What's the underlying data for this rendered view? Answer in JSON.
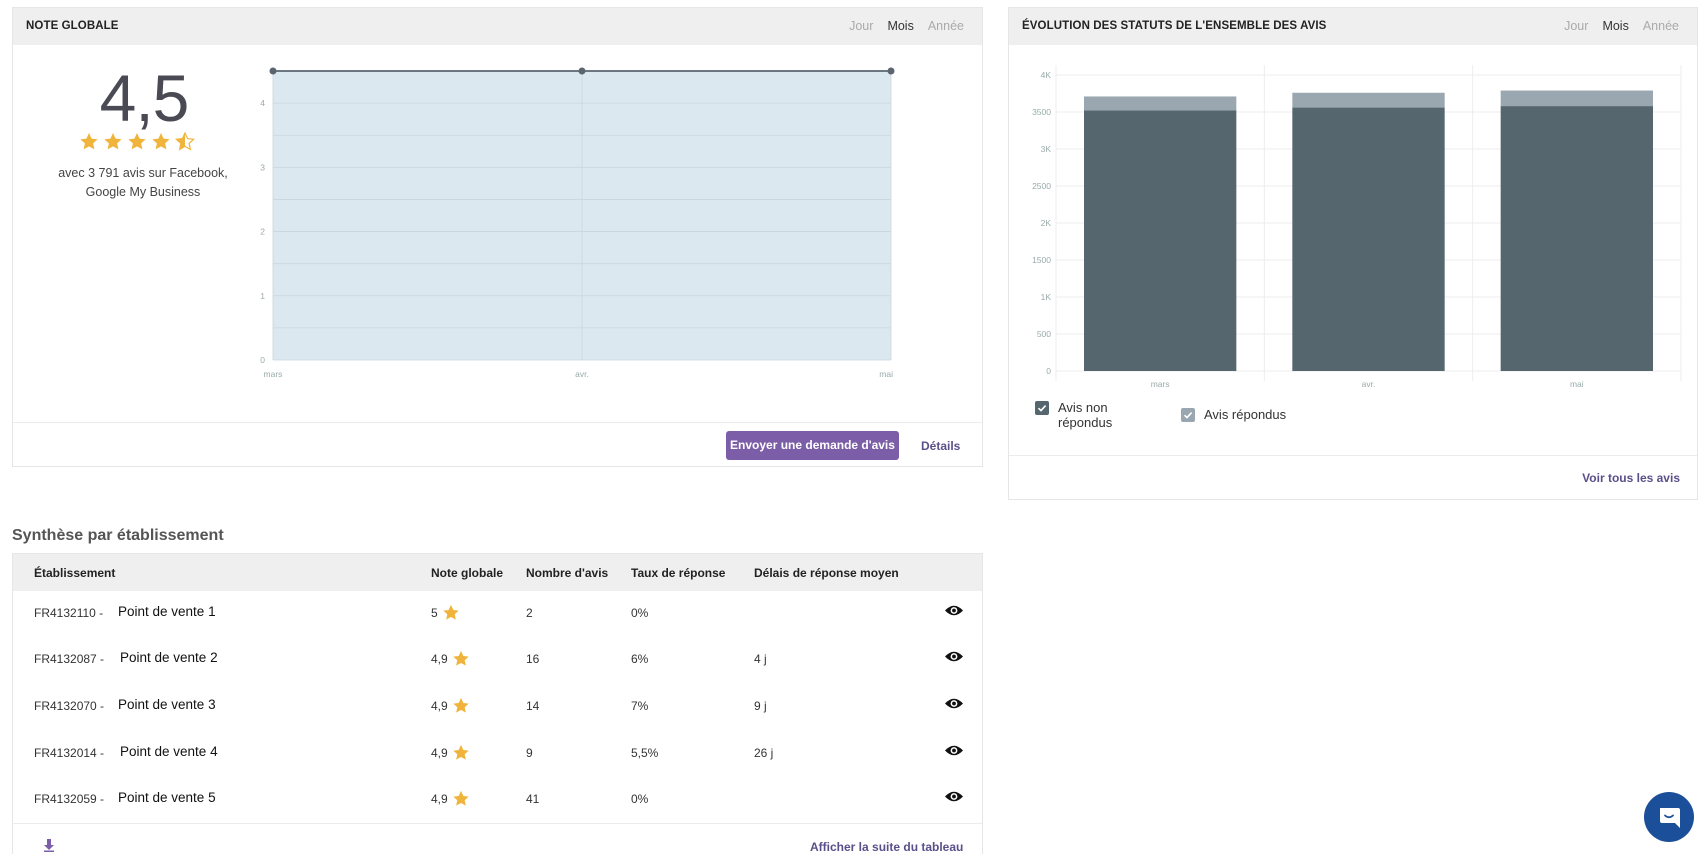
{
  "note_card": {
    "title": "NOTE GLOBALE",
    "periods": [
      "Jour",
      "Mois",
      "Année"
    ],
    "active_period": "Mois",
    "score": "4,5",
    "stars": 4.5,
    "reviews_line1": "avec 3 791 avis sur Facebook,",
    "reviews_line2": "Google My Business",
    "send_button": "Envoyer une demande d'avis",
    "details_link": "Détails",
    "star_color": "#f0b43c"
  },
  "evo_card": {
    "title": "ÉVOLUTION DES STATUTS DE L'ENSEMBLE DES AVIS",
    "periods": [
      "Jour",
      "Mois",
      "Année"
    ],
    "active_period": "Mois",
    "legend_non": "Avis non répondus",
    "legend_rep": "Avis répondus",
    "see_all": "Voir tous les avis"
  },
  "chart_data": [
    {
      "type": "area",
      "categories": [
        "mars",
        "avr.",
        "mai"
      ],
      "values": [
        4.5,
        4.5,
        4.5
      ],
      "ylim": [
        0,
        4.5
      ],
      "yticks": [
        "0",
        "1",
        "2",
        "3",
        "4"
      ],
      "grid": true,
      "fill_color": "#dce8f0",
      "line_color": "#5a6570"
    },
    {
      "type": "bar",
      "stacked": true,
      "categories": [
        "mars",
        "avr.",
        "mai"
      ],
      "series": [
        {
          "name": "Avis non répondus",
          "values": [
            3520,
            3560,
            3580
          ],
          "color": "#56666f"
        },
        {
          "name": "Avis répondus",
          "values": [
            190,
            200,
            210
          ],
          "color": "#9aa7b0"
        }
      ],
      "ylim": [
        0,
        4000
      ],
      "yticks": [
        "0",
        "500",
        "1K",
        "1500",
        "2K",
        "2500",
        "3K",
        "3500",
        "4K"
      ],
      "grid": true
    }
  ],
  "table": {
    "section_title": "Synthèse par établissement",
    "headers": {
      "etab": "Établissement",
      "note": "Note globale",
      "nombre": "Nombre d'avis",
      "taux": "Taux de réponse",
      "delai": "Délais de réponse moyen"
    },
    "rows": [
      {
        "code": "FR4132110 -",
        "name": "Point de vente 1",
        "note": "5",
        "nombre": "2",
        "taux": "0%",
        "delai": ""
      },
      {
        "code": "FR4132087 -",
        "name": "Point de vente 2",
        "note": "4,9",
        "nombre": "16",
        "taux": "6%",
        "delai": "4 j"
      },
      {
        "code": "FR4132070 -",
        "name": "Point de vente 3",
        "note": "4,9",
        "nombre": "14",
        "taux": "7%",
        "delai": "9 j"
      },
      {
        "code": "FR4132014 -",
        "name": "Point de vente 4",
        "note": "4,9",
        "nombre": "9",
        "taux": "5,5%",
        "delai": "26 j"
      },
      {
        "code": "FR4132059 -",
        "name": "Point de vente 5",
        "note": "4,9",
        "nombre": "41",
        "taux": "0%",
        "delai": ""
      }
    ],
    "show_more": "Afficher la suite du tableau"
  },
  "accent_color": "#7b5ea7",
  "chat_color": "#1c4f9a"
}
